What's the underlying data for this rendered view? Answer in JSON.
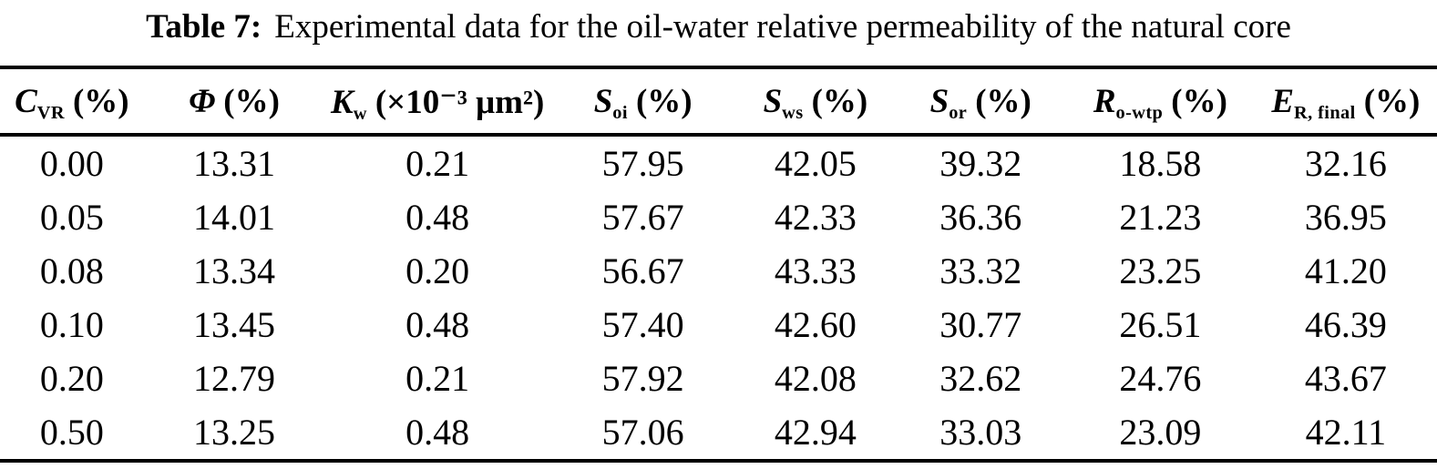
{
  "title": {
    "label": "Table 7:",
    "text": "Experimental data for the oil-water relative permeability of the natural core"
  },
  "table": {
    "headers": [
      {
        "symbol": "C",
        "subscript": "VR",
        "unit": "(%)"
      },
      {
        "symbol": "Φ",
        "subscript": "",
        "unit": "(%)"
      },
      {
        "symbol": "K",
        "subscript": "w",
        "unit": "(×10⁻³ μm²)"
      },
      {
        "symbol": "S",
        "subscript": "oi",
        "unit": "(%)"
      },
      {
        "symbol": "S",
        "subscript": "ws",
        "unit": "(%)"
      },
      {
        "symbol": "S",
        "subscript": "or",
        "unit": "(%)"
      },
      {
        "symbol": "R",
        "subscript": "o-wtp",
        "unit": "(%)"
      },
      {
        "symbol": "E",
        "subscript": "R, final",
        "unit": "(%)"
      }
    ],
    "rows": [
      [
        "0.00",
        "13.31",
        "0.21",
        "57.95",
        "42.05",
        "39.32",
        "18.58",
        "32.16"
      ],
      [
        "0.05",
        "14.01",
        "0.48",
        "57.67",
        "42.33",
        "36.36",
        "21.23",
        "36.95"
      ],
      [
        "0.08",
        "13.34",
        "0.20",
        "56.67",
        "43.33",
        "33.32",
        "23.25",
        "41.20"
      ],
      [
        "0.10",
        "13.45",
        "0.48",
        "57.40",
        "42.60",
        "30.77",
        "26.51",
        "46.39"
      ],
      [
        "0.20",
        "12.79",
        "0.21",
        "57.92",
        "42.08",
        "32.62",
        "24.76",
        "43.67"
      ],
      [
        "0.50",
        "13.25",
        "0.48",
        "57.06",
        "42.94",
        "33.03",
        "23.09",
        "42.11"
      ]
    ]
  },
  "colors": {
    "text": "#000000",
    "background": "#ffffff",
    "rule": "#000000"
  }
}
